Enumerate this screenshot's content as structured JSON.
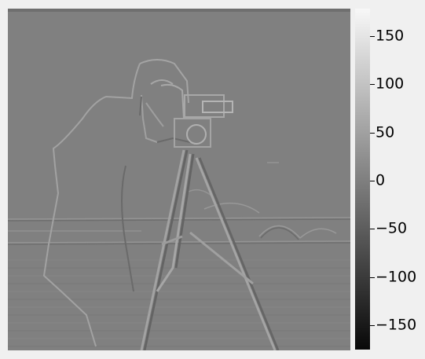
{
  "figure": {
    "image": {
      "subject": "edge-filtered grayscale photo of a cameraman with tripod camera"
    },
    "colorbar": {
      "ticks": [
        "150",
        "100",
        "50",
        "0",
        "−50",
        "−100",
        "−150"
      ],
      "range": [
        -175,
        175
      ],
      "colormap": "gray"
    }
  }
}
